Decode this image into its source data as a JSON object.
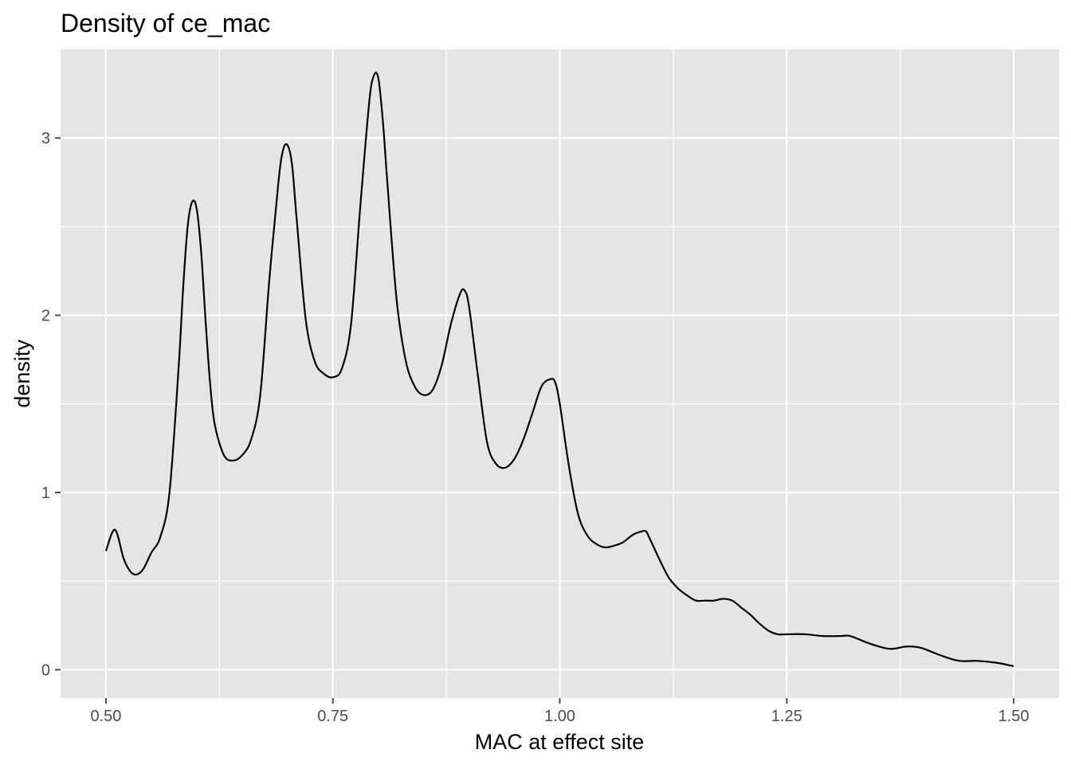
{
  "chart_data": {
    "type": "line",
    "title": "Density of ce_mac",
    "xlabel": "MAC at effect site",
    "ylabel": "density",
    "xlim": [
      0.45,
      1.55
    ],
    "ylim": [
      -0.16,
      3.5
    ],
    "x_ticks": [
      {
        "value": 0.5,
        "label": "0.50"
      },
      {
        "value": 0.75,
        "label": "0.75"
      },
      {
        "value": 1.0,
        "label": "1.00"
      },
      {
        "value": 1.25,
        "label": "1.25"
      },
      {
        "value": 1.5,
        "label": "1.50"
      }
    ],
    "y_ticks": [
      {
        "value": 0,
        "label": "0"
      },
      {
        "value": 1,
        "label": "1"
      },
      {
        "value": 2,
        "label": "2"
      },
      {
        "value": 3,
        "label": "3"
      }
    ],
    "grid": true,
    "legend": "none",
    "colors": {
      "panel": "#e5e5e5",
      "grid": "#ffffff",
      "line": "#000000",
      "tick": "#4d4d4d"
    },
    "series": [
      {
        "x": [
          0.5,
          0.51,
          0.52,
          0.53,
          0.54,
          0.55,
          0.56,
          0.57,
          0.58,
          0.585,
          0.59,
          0.595,
          0.6,
          0.605,
          0.61,
          0.615,
          0.62,
          0.63,
          0.64,
          0.65,
          0.66,
          0.67,
          0.68,
          0.69,
          0.695,
          0.7,
          0.705,
          0.71,
          0.72,
          0.73,
          0.74,
          0.75,
          0.76,
          0.77,
          0.78,
          0.79,
          0.795,
          0.8,
          0.805,
          0.81,
          0.82,
          0.83,
          0.84,
          0.85,
          0.86,
          0.87,
          0.88,
          0.89,
          0.895,
          0.9,
          0.91,
          0.92,
          0.93,
          0.94,
          0.95,
          0.96,
          0.97,
          0.98,
          0.99,
          0.995,
          1.0,
          1.01,
          1.02,
          1.03,
          1.04,
          1.05,
          1.06,
          1.07,
          1.08,
          1.09,
          1.095,
          1.1,
          1.11,
          1.12,
          1.13,
          1.14,
          1.15,
          1.16,
          1.17,
          1.18,
          1.19,
          1.2,
          1.21,
          1.22,
          1.23,
          1.24,
          1.25,
          1.27,
          1.29,
          1.31,
          1.32,
          1.34,
          1.36,
          1.37,
          1.38,
          1.39,
          1.4,
          1.42,
          1.44,
          1.46,
          1.48,
          1.5
        ],
        "values": [
          0.67,
          0.79,
          0.62,
          0.54,
          0.56,
          0.66,
          0.75,
          1.0,
          1.7,
          2.15,
          2.5,
          2.64,
          2.6,
          2.35,
          1.95,
          1.6,
          1.38,
          1.21,
          1.18,
          1.21,
          1.3,
          1.55,
          2.2,
          2.75,
          2.93,
          2.96,
          2.85,
          2.55,
          1.98,
          1.74,
          1.67,
          1.65,
          1.7,
          1.95,
          2.6,
          3.2,
          3.35,
          3.34,
          3.1,
          2.75,
          2.1,
          1.75,
          1.6,
          1.55,
          1.58,
          1.72,
          1.95,
          2.12,
          2.14,
          2.05,
          1.65,
          1.28,
          1.16,
          1.14,
          1.19,
          1.3,
          1.45,
          1.6,
          1.64,
          1.62,
          1.5,
          1.15,
          0.88,
          0.76,
          0.71,
          0.69,
          0.7,
          0.72,
          0.76,
          0.78,
          0.78,
          0.73,
          0.62,
          0.52,
          0.46,
          0.42,
          0.39,
          0.39,
          0.39,
          0.4,
          0.39,
          0.35,
          0.31,
          0.26,
          0.22,
          0.2,
          0.2,
          0.2,
          0.19,
          0.19,
          0.19,
          0.15,
          0.12,
          0.12,
          0.13,
          0.13,
          0.12,
          0.08,
          0.05,
          0.05,
          0.04,
          0.02
        ]
      }
    ]
  }
}
